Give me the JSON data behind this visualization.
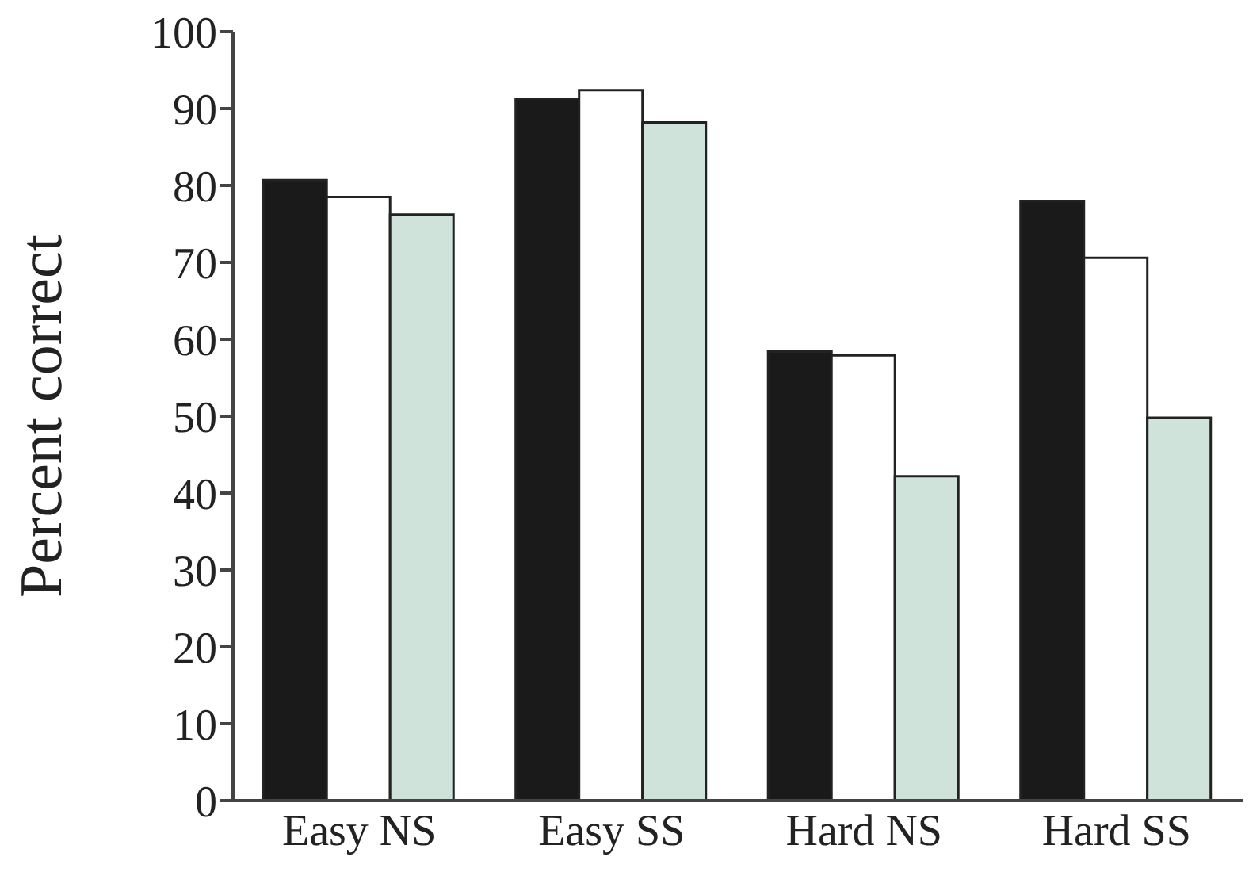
{
  "chart_data": {
    "type": "bar",
    "ylabel": "Percent correct",
    "categories": [
      "Easy NS",
      "Easy SS",
      "Hard NS",
      "Hard SS"
    ],
    "series": [
      {
        "color": "#1a1a1a",
        "values": [
          80.7,
          91.3,
          58.4,
          78.0
        ]
      },
      {
        "color": "#ffffff",
        "values": [
          78.5,
          92.4,
          57.9,
          70.6
        ]
      },
      {
        "color": "#cfe3da",
        "values": [
          76.2,
          88.2,
          42.2,
          49.8
        ]
      }
    ],
    "ylim": [
      0,
      100
    ],
    "yticks": [
      0,
      10,
      20,
      30,
      40,
      50,
      60,
      70,
      80,
      90,
      100
    ],
    "grid": false,
    "legend": false
  }
}
